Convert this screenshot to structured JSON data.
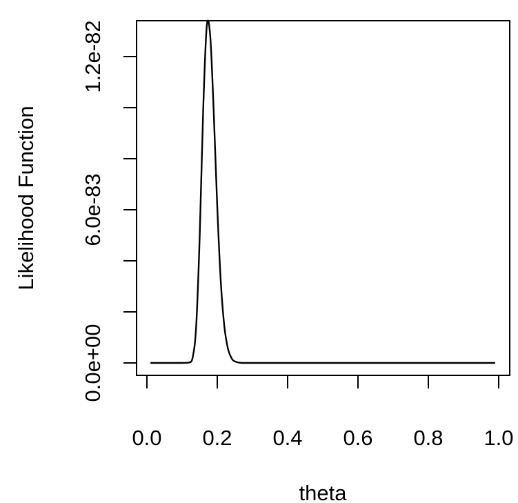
{
  "chart_data": {
    "type": "line",
    "xlabel": "theta",
    "ylabel": "Likelihood Function",
    "xlim": [
      0.0,
      1.0
    ],
    "ylim": [
      0,
      1.32e-82
    ],
    "x_ticks": [
      {
        "value": 0.0,
        "label": "0.0"
      },
      {
        "value": 0.2,
        "label": "0.2"
      },
      {
        "value": 0.4,
        "label": "0.4"
      },
      {
        "value": 0.6,
        "label": "0.6"
      },
      {
        "value": 0.8,
        "label": "0.8"
      },
      {
        "value": 1.0,
        "label": "1.0"
      }
    ],
    "y_ticks": [
      {
        "value": 0,
        "label": "0.0e+00"
      },
      {
        "value": 2e-83,
        "label": ""
      },
      {
        "value": 4e-83,
        "label": ""
      },
      {
        "value": 6e-83,
        "label": "6.0e-83"
      },
      {
        "value": 8e-83,
        "label": ""
      },
      {
        "value": 1e-82,
        "label": ""
      },
      {
        "value": 1.2e-82,
        "label": "1.2e-82"
      }
    ],
    "series": [
      {
        "x": [
          0.01,
          0.05,
          0.1,
          0.12,
          0.13,
          0.14,
          0.15,
          0.16,
          0.17,
          0.18,
          0.19,
          0.2,
          0.21,
          0.22,
          0.23,
          0.24,
          0.25,
          0.27,
          0.3,
          0.4,
          0.5,
          0.6,
          0.7,
          0.8,
          0.9,
          0.99
        ],
        "y": [
          0,
          0,
          0,
          1.4e-85,
          2.1e-84,
          1.43e-83,
          4.94e-83,
          9.92e-83,
          1.317e-82,
          1.28e-82,
          9.8e-83,
          6.1e-83,
          3.19e-83,
          1.45e-83,
          5.8e-84,
          2e-84,
          6e-85,
          0,
          0,
          0,
          0,
          0,
          0,
          0,
          0,
          0
        ]
      }
    ],
    "grid": false,
    "legend": false
  }
}
